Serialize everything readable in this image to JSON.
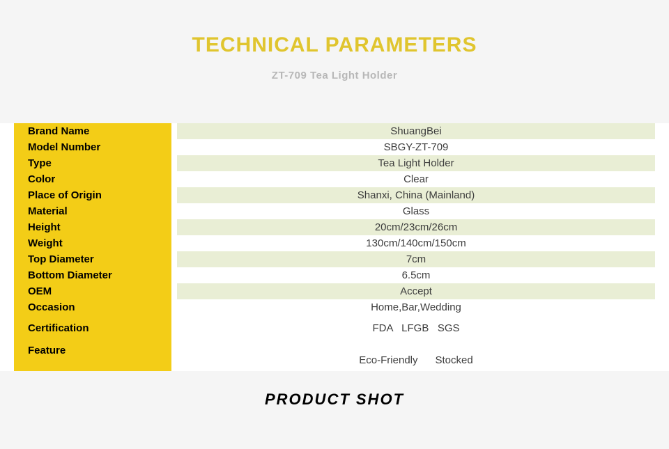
{
  "header": {
    "title": "TECHNICAL PARAMETERS",
    "subtitle": "ZT-709  Tea Light Holder"
  },
  "style": {
    "title_color": "#e0c52e",
    "title_fontsize": 30,
    "subtitle_color": "#b7b7b7",
    "subtitle_fontsize": 15,
    "label_bg": "#f3cd17",
    "value_bg_alt": "#e9eed5",
    "value_bg": "#ffffff",
    "page_bg": "#f5f5f5",
    "table_bg": "#ffffff",
    "label_fontsize": 15,
    "value_fontsize": 15,
    "footer_color": "#000000",
    "footer_fontsize": 22,
    "label_col_width": 226
  },
  "specs": [
    {
      "label": "Brand Name",
      "value": "ShuangBei",
      "value_bg": "alt"
    },
    {
      "label": "Model Number",
      "value": "SBGY-ZT-709",
      "value_bg": "plain"
    },
    {
      "label": "Type",
      "value": "Tea Light Holder",
      "value_bg": "alt"
    },
    {
      "label": "Color",
      "value": "Clear",
      "value_bg": "plain"
    },
    {
      "label": "Place of Origin",
      "value": "Shanxi, China (Mainland)",
      "value_bg": "alt"
    },
    {
      "label": "Material",
      "value": "Glass",
      "value_bg": "plain"
    },
    {
      "label": "Height",
      "value": "20cm/23cm/26cm",
      "value_bg": "alt"
    },
    {
      "label": "Weight",
      "value": "130cm/140cm/150cm",
      "value_bg": "plain"
    },
    {
      "label": "Top Diameter",
      "value": "7cm",
      "value_bg": "alt"
    },
    {
      "label": "Bottom Diameter",
      "value": "6.5cm",
      "value_bg": "plain"
    },
    {
      "label": "OEM",
      "value": "Accept",
      "value_bg": "alt"
    },
    {
      "label": "Occasion",
      "value": "Home,Bar,Wedding",
      "value_bg": "plain"
    },
    {
      "label": "Certification",
      "value": "FDA   LFGB   SGS",
      "value_bg": "plain",
      "tall": true
    },
    {
      "label": "Feature",
      "value": "Eco-Friendly      Stocked",
      "value_bg": "plain",
      "feature": true
    }
  ],
  "footer": {
    "title": "PRODUCT  SHOT"
  }
}
